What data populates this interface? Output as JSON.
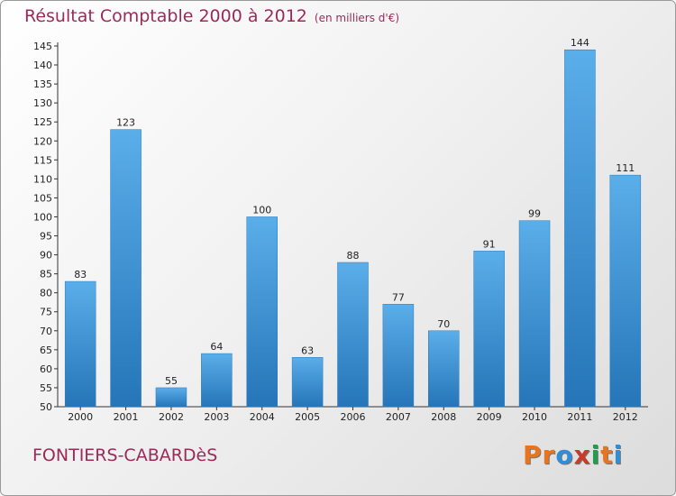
{
  "header": {
    "title": "Résultat Comptable 2000 à 2012",
    "subtitle": "(en milliers d'€)"
  },
  "footer": {
    "commune": "FONTIERS-CABARDèS",
    "logo": "Proxiti",
    "logo_colors": [
      "#e8741e",
      "#e8741e",
      "#2e8fd6",
      "#c83a2a",
      "#1f9e4b",
      "#e8741e",
      "#2e8fd6"
    ]
  },
  "chart_data": {
    "type": "bar",
    "categories": [
      "2000",
      "2001",
      "2002",
      "2003",
      "2004",
      "2005",
      "2006",
      "2007",
      "2008",
      "2009",
      "2010",
      "2011",
      "2012"
    ],
    "values": [
      83,
      123,
      55,
      64,
      100,
      63,
      88,
      77,
      70,
      91,
      99,
      144,
      111
    ],
    "ylim": [
      50,
      145
    ],
    "ytick_step": 5,
    "grid": false,
    "data_labels": true,
    "bar_color": "#3e97dc"
  }
}
